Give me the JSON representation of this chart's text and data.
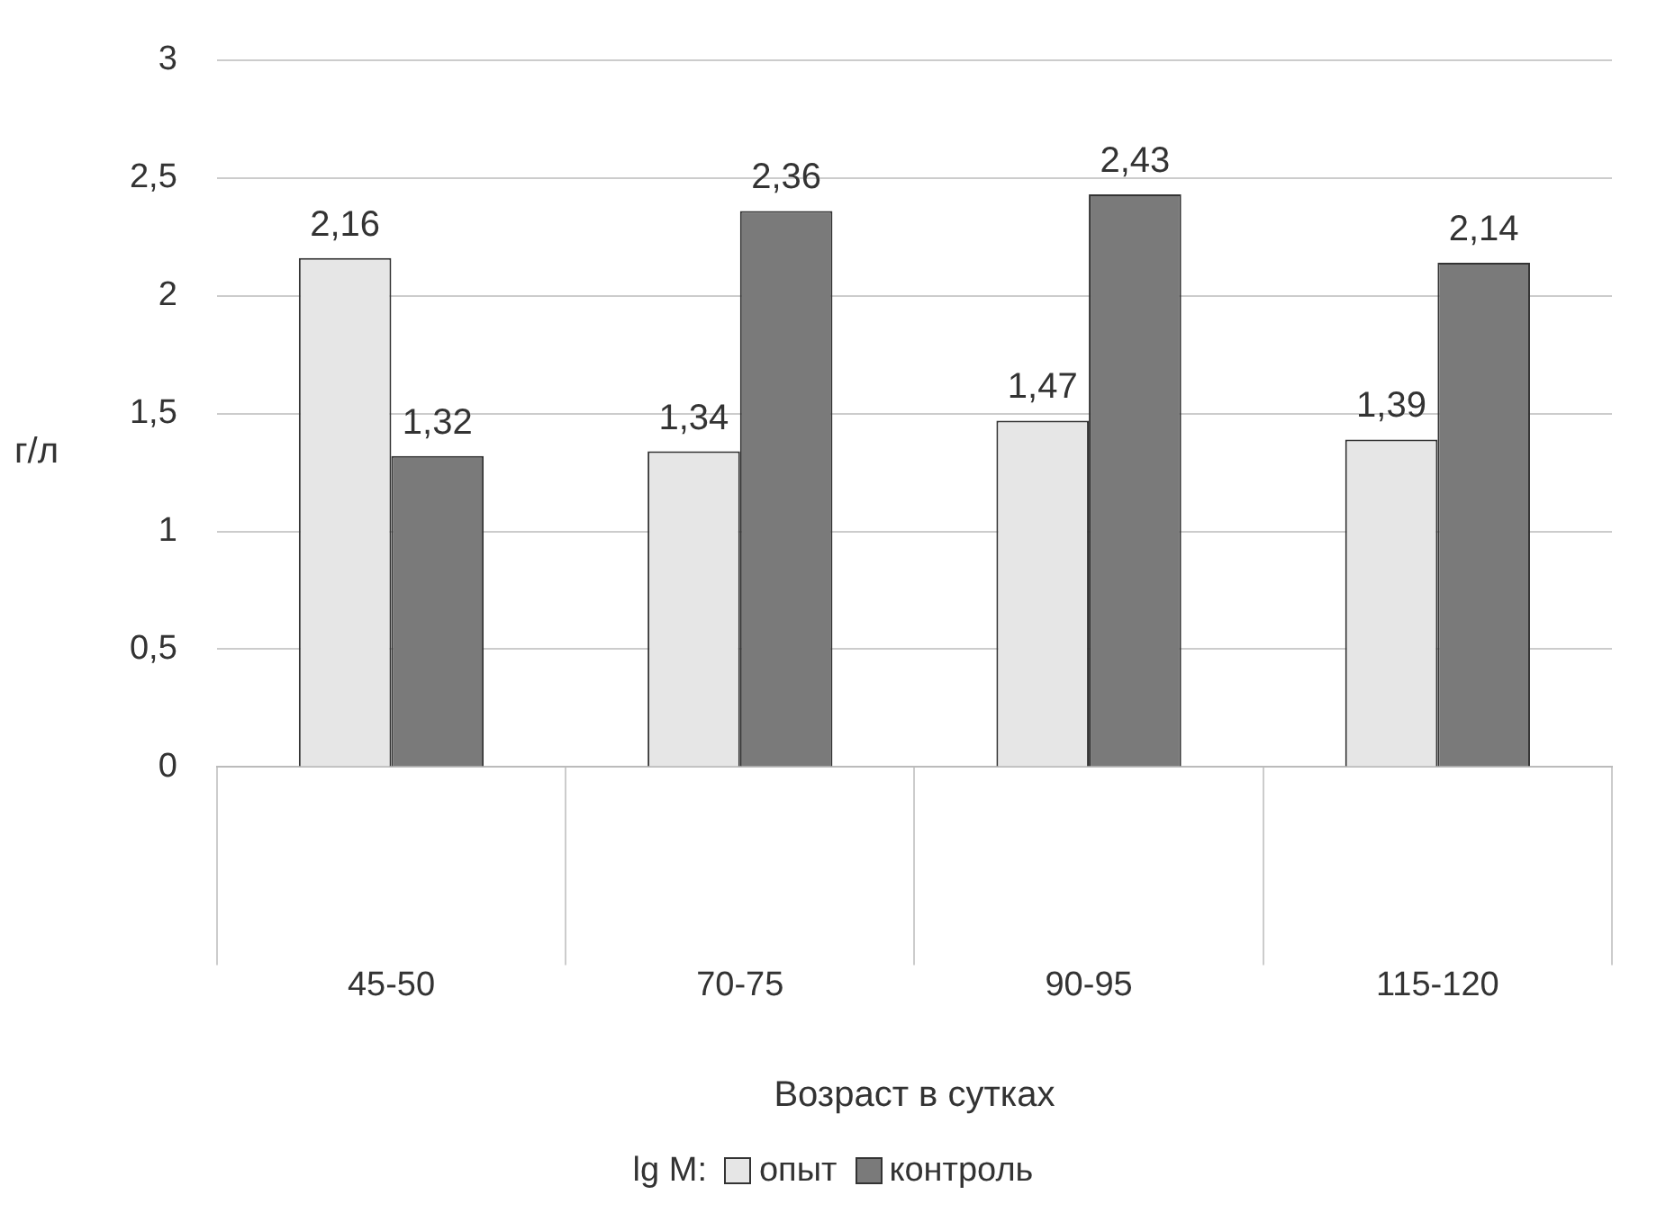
{
  "chart_data": {
    "type": "bar",
    "ylabel": "г/л",
    "xlabel": "Возраст в сутках",
    "legend_title": "lg M:",
    "categories": [
      "45-50",
      "70-75",
      "90-95",
      "115-120"
    ],
    "series": [
      {
        "name": "опыт",
        "color": "#e6e6e6",
        "values": [
          2.16,
          1.34,
          1.47,
          1.39
        ],
        "value_labels": [
          "2,16",
          "1,34",
          "1,47",
          "1,39"
        ]
      },
      {
        "name": "контроль",
        "color": "#7a7a7a",
        "values": [
          1.32,
          2.36,
          2.43,
          2.14
        ],
        "value_labels": [
          "1,32",
          "2,36",
          "2,43",
          "2,14"
        ]
      }
    ],
    "ylim": [
      0,
      3
    ],
    "yticks": [
      0,
      {
        "value": 0.5,
        "label": "0,5"
      },
      1,
      {
        "value": 1.5,
        "label": "1,5"
      },
      2,
      {
        "value": 2.5,
        "label": "2,5"
      },
      3
    ],
    "grid": "y",
    "legend": "bottom"
  }
}
